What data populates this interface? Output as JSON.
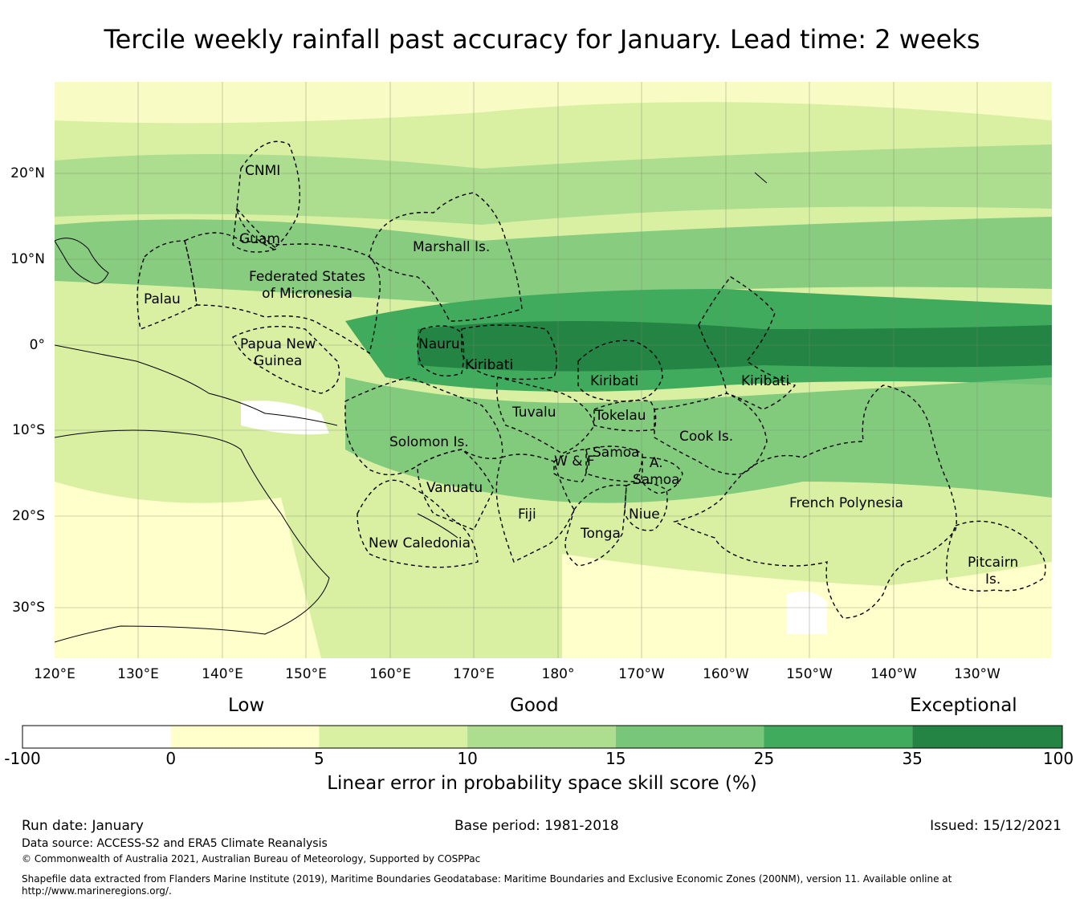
{
  "title": "Tercile weekly rainfall past accuracy for January. Lead time: 2 weeks",
  "map": {
    "lon_labels": [
      "120°E",
      "130°E",
      "140°E",
      "150°E",
      "160°E",
      "170°E",
      "180°",
      "170°W",
      "160°W",
      "150°W",
      "140°W",
      "130°W"
    ],
    "lat_labels": [
      "20°N",
      "10°N",
      "0°",
      "10°S",
      "20°S",
      "30°S"
    ],
    "regions": [
      {
        "id": "cnmi",
        "label": "CNMI"
      },
      {
        "id": "guam",
        "label": "Guam"
      },
      {
        "id": "marshall",
        "label": "Marshall Is."
      },
      {
        "id": "fsm",
        "label": "Federated States\nof Micronesia"
      },
      {
        "id": "palau",
        "label": "Palau"
      },
      {
        "id": "png",
        "label": "Papua New\nGuinea"
      },
      {
        "id": "nauru",
        "label": "Nauru"
      },
      {
        "id": "kiribati-w",
        "label": "Kiribati"
      },
      {
        "id": "kiribati-c",
        "label": "Kiribati"
      },
      {
        "id": "kiribati-e",
        "label": "Kiribati"
      },
      {
        "id": "tuvalu",
        "label": "Tuvalu"
      },
      {
        "id": "tokelau",
        "label": "Tokelau"
      },
      {
        "id": "cook",
        "label": "Cook Is."
      },
      {
        "id": "solomon",
        "label": "Solomon Is."
      },
      {
        "id": "samoa",
        "label": "Samoa"
      },
      {
        "id": "wf",
        "label": "W & F"
      },
      {
        "id": "asamoa",
        "label": "A.\nSamoa"
      },
      {
        "id": "vanuatu",
        "label": "Vanuatu"
      },
      {
        "id": "fiji",
        "label": "Fiji"
      },
      {
        "id": "niue",
        "label": "Niue"
      },
      {
        "id": "tonga",
        "label": "Tonga"
      },
      {
        "id": "newcal",
        "label": "New Caledonia"
      },
      {
        "id": "frpoly",
        "label": "French Polynesia"
      },
      {
        "id": "pitcairn",
        "label": "Pitcairn\nIs."
      }
    ]
  },
  "colorbar": {
    "categories": [
      "Low",
      "Good",
      "Exceptional"
    ],
    "ticks": [
      "-100",
      "0",
      "5",
      "10",
      "15",
      "25",
      "35",
      "100"
    ],
    "colors": [
      "#ffffff",
      "#ffffcc",
      "#d9f0a3",
      "#addd8e",
      "#78c679",
      "#41ab5d",
      "#238443"
    ],
    "axis_label": "Linear error in probability space skill score (%)"
  },
  "footer": {
    "run_date": "Run date: January",
    "base_period": "Base period: 1981-2018",
    "issued": "Issued: 15/12/2021",
    "data_source": "Data source: ACCESS-S2 and ERA5 Climate Reanalysis",
    "copyright": "© Commonwealth of Australia 2021, Australian Bureau of Meteorology, Supported by COSPPac",
    "shapefile": "Shapefile data extracted from Flanders Marine Institute (2019), Maritime Boundaries Geodatabase: Maritime Boundaries and Exclusive Economic Zones (200NM), version 11. Available online at http://www.marineregions.org/."
  }
}
